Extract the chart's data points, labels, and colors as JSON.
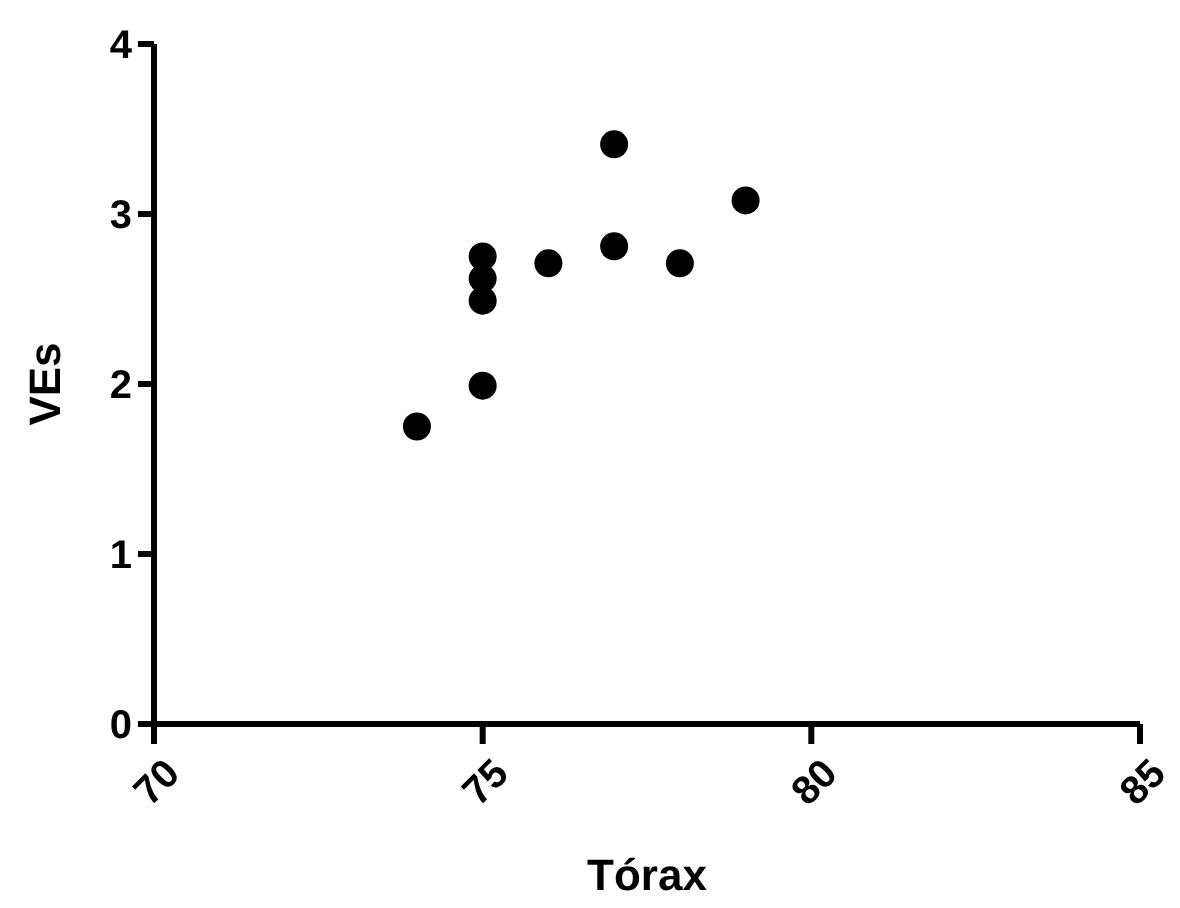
{
  "chart_data": {
    "type": "scatter",
    "xlabel": "Tórax",
    "ylabel": "VEs",
    "x": [
      74,
      75,
      75,
      75,
      75,
      76,
      77,
      77,
      78,
      79
    ],
    "values": [
      1.75,
      1.99,
      2.49,
      2.62,
      2.75,
      2.71,
      2.81,
      3.41,
      2.71,
      3.08
    ],
    "color": "#000000",
    "marker": "circle",
    "xlim": [
      70,
      85
    ],
    "xticks": [
      70,
      75,
      80,
      85
    ],
    "ylim": [
      0,
      4
    ],
    "yticks": [
      0,
      1,
      2,
      3,
      4
    ],
    "grid": false
  }
}
